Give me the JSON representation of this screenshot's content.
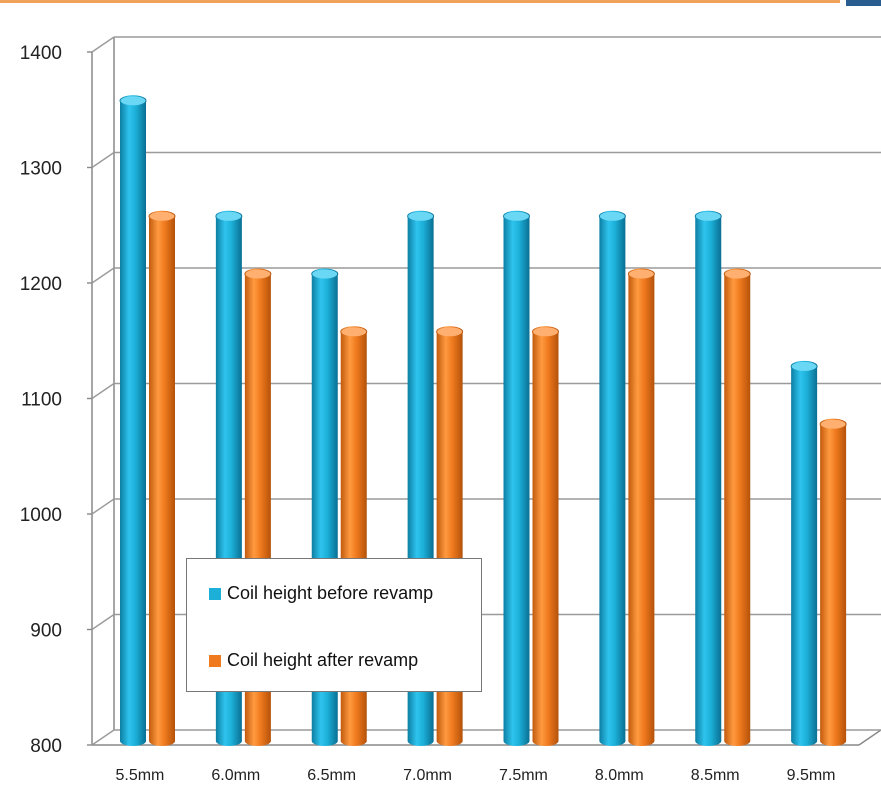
{
  "chart_data": {
    "type": "bar",
    "categories": [
      "5.5mm",
      "6.0mm",
      "6.5mm",
      "7.0mm",
      "7.5mm",
      "8.0mm",
      "8.5mm",
      "9.5mm"
    ],
    "series": [
      {
        "name": "Coil height before revamp",
        "values": [
          1350,
          1250,
          1200,
          1250,
          1250,
          1250,
          1250,
          1120
        ],
        "color": "#1cb0d8"
      },
      {
        "name": "Coil height after revamp",
        "values": [
          1250,
          1200,
          1150,
          1150,
          1150,
          1200,
          1200,
          1070
        ],
        "color": "#f07a1e"
      }
    ],
    "yticks": [
      "800",
      "900",
      "1000",
      "1100",
      "1200",
      "1300",
      "1400"
    ],
    "ylim": [
      800,
      1400
    ],
    "grid": true,
    "legend_position": "bottom-left"
  }
}
